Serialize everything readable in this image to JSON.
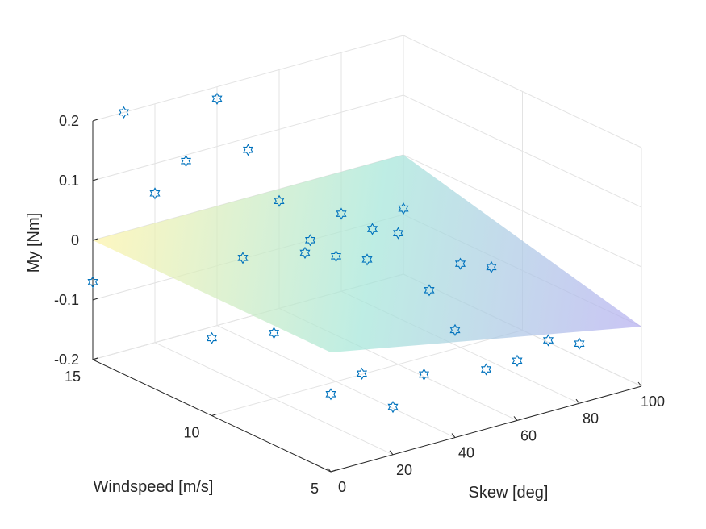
{
  "chart_data": {
    "type": "scatter3d",
    "xlabel": "Skew [deg]",
    "ylabel": "Windspeed [m/s]",
    "zlabel": "My [Nm]",
    "xlim": [
      0,
      100
    ],
    "ylim": [
      5,
      15
    ],
    "zlim": [
      -0.2,
      0.2
    ],
    "xticks": [
      "0",
      "20",
      "40",
      "60",
      "80",
      "100"
    ],
    "yticks": [
      "5",
      "10",
      "15"
    ],
    "zticks": [
      "-0.2",
      "-0.1",
      "0",
      "0.1",
      "0.2"
    ],
    "grid": true,
    "marker": "hexagram",
    "marker_color": "#0072bd",
    "surface": {
      "type": "plane",
      "z_corners": {
        "x0y5": 0.0,
        "x0y15": 0.0,
        "x100y5": -0.1,
        "x100y15": 0.0
      },
      "colors": {
        "high": "#fdf3a8",
        "mid": "#a5e6d9",
        "low": "#b5aef0"
      },
      "opacity": 0.72
    },
    "points": [
      {
        "x": 0,
        "y": 15,
        "z": -0.07
      },
      {
        "x": 0,
        "y": 10,
        "z": -0.07
      },
      {
        "x": 0,
        "y": 5,
        "z": -0.07
      },
      {
        "x": 10,
        "y": 15,
        "z": 0.2
      },
      {
        "x": 10,
        "y": 10,
        "z": 0.05
      },
      {
        "x": 10,
        "y": 5,
        "z": -0.05
      },
      {
        "x": 20,
        "y": 15,
        "z": 0.05
      },
      {
        "x": 20,
        "y": 10,
        "z": -0.09
      },
      {
        "x": 20,
        "y": 5,
        "z": -0.12
      },
      {
        "x": 30,
        "y": 15,
        "z": 0.09
      },
      {
        "x": 30,
        "y": 10,
        "z": 0.03
      },
      {
        "x": 30,
        "y": 5,
        "z": -0.08
      },
      {
        "x": 40,
        "y": 15,
        "z": 0.18
      },
      {
        "x": 40,
        "y": 10,
        "z": 0.01
      },
      {
        "x": 40,
        "y": 5,
        "z": -0.02
      },
      {
        "x": 50,
        "y": 15,
        "z": 0.08
      },
      {
        "x": 50,
        "y": 10,
        "z": -0.01
      },
      {
        "x": 50,
        "y": 5,
        "z": -0.1
      },
      {
        "x": 60,
        "y": 15,
        "z": -0.02
      },
      {
        "x": 60,
        "y": 10,
        "z": 0.02
      },
      {
        "x": 60,
        "y": 5,
        "z": -0.1
      },
      {
        "x": 70,
        "y": 15,
        "z": -0.1
      },
      {
        "x": 70,
        "y": 10,
        "z": -0.09
      },
      {
        "x": 70,
        "y": 5,
        "z": -0.08
      },
      {
        "x": 80,
        "y": 15,
        "z": -0.07
      },
      {
        "x": 80,
        "y": 10,
        "z": -0.06
      },
      {
        "x": 80,
        "y": 5,
        "z": -0.1
      },
      {
        "x": 90,
        "y": 15,
        "z": -0.11
      },
      {
        "x": 90,
        "y": 10,
        "z": -0.08
      },
      {
        "x": 100,
        "y": 15,
        "z": -0.09
      }
    ]
  }
}
